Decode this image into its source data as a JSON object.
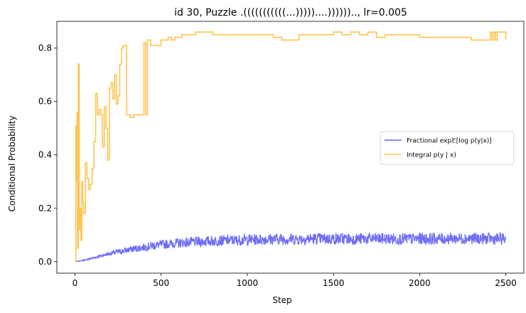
{
  "chart_data": {
    "type": "line",
    "title": "id 30, Puzzle .(((((((((((...)))))....)))))).., lr=0.005",
    "xlabel": "Step",
    "ylabel": "Conditional Probability",
    "xlim": [
      -105,
      2605
    ],
    "ylim": [
      -0.043,
      0.9
    ],
    "xticks": [
      0,
      500,
      1000,
      1500,
      2000,
      2500
    ],
    "xtick_labels": [
      "0",
      "500",
      "1000",
      "1500",
      "2000",
      "2500"
    ],
    "yticks": [
      0.0,
      0.2,
      0.4,
      0.6,
      0.8
    ],
    "ytick_labels": [
      "0.0",
      "0.2",
      "0.4",
      "0.6",
      "0.8"
    ],
    "grid": false,
    "legend_position": "center-right",
    "series": [
      {
        "name": "Fractional exp𝔼[log p(y|x)]",
        "legend_label": "Fractional exp𝔼[log p(y|x)]",
        "color": "#6666f5",
        "x": [
          0,
          50,
          100,
          150,
          200,
          250,
          300,
          350,
          400,
          450,
          500,
          600,
          700,
          800,
          900,
          1000,
          1100,
          1200,
          1300,
          1400,
          1500,
          1600,
          1700,
          1800,
          1900,
          2000,
          2100,
          2200,
          2300,
          2400,
          2500
        ],
        "values": [
          0.0,
          0.005,
          0.013,
          0.022,
          0.03,
          0.037,
          0.043,
          0.049,
          0.054,
          0.06,
          0.064,
          0.07,
          0.074,
          0.078,
          0.08,
          0.082,
          0.084,
          0.085,
          0.085,
          0.086,
          0.086,
          0.085,
          0.086,
          0.086,
          0.085,
          0.086,
          0.086,
          0.087,
          0.087,
          0.086,
          0.085
        ],
        "noise_amplitude": [
          0.0,
          0.002,
          0.004,
          0.006,
          0.008,
          0.01,
          0.012,
          0.013,
          0.015,
          0.016,
          0.017,
          0.018,
          0.019,
          0.02,
          0.02,
          0.021,
          0.021,
          0.022,
          0.022,
          0.022,
          0.022,
          0.022,
          0.022,
          0.022,
          0.022,
          0.022,
          0.022,
          0.022,
          0.022,
          0.022,
          0.022
        ]
      },
      {
        "name": "Integral p(y | x)",
        "legend_label": "Integral p(y | x)",
        "color": "#ffc451",
        "x": [
          0,
          5,
          8,
          12,
          15,
          20,
          25,
          30,
          35,
          40,
          45,
          50,
          60,
          70,
          80,
          90,
          100,
          110,
          120,
          130,
          140,
          150,
          160,
          170,
          180,
          190,
          200,
          210,
          220,
          230,
          240,
          250,
          260,
          270,
          280,
          300,
          320,
          340,
          360,
          380,
          400,
          410,
          420,
          430,
          440,
          450,
          460,
          480,
          500,
          520,
          540,
          560,
          580,
          600,
          620,
          650,
          700,
          750,
          800,
          900,
          1000,
          1050,
          1100,
          1150,
          1200,
          1300,
          1400,
          1450,
          1500,
          1550,
          1600,
          1650,
          1700,
          1750,
          1800,
          1900,
          2000,
          2050,
          2100,
          2200,
          2300,
          2400,
          2410,
          2420,
          2430,
          2440,
          2450,
          2460,
          2470,
          2480,
          2490,
          2500
        ],
        "values": [
          0.0,
          0.51,
          0.3,
          0.56,
          0.05,
          0.74,
          0.12,
          0.2,
          0.08,
          0.3,
          0.22,
          0.18,
          0.37,
          0.31,
          0.27,
          0.29,
          0.35,
          0.45,
          0.63,
          0.55,
          0.57,
          0.55,
          0.43,
          0.58,
          0.5,
          0.38,
          0.65,
          0.67,
          0.61,
          0.7,
          0.59,
          0.62,
          0.74,
          0.8,
          0.81,
          0.55,
          0.54,
          0.55,
          0.55,
          0.55,
          0.82,
          0.55,
          0.83,
          0.83,
          0.81,
          0.81,
          0.81,
          0.81,
          0.83,
          0.83,
          0.84,
          0.83,
          0.84,
          0.84,
          0.85,
          0.85,
          0.86,
          0.86,
          0.85,
          0.85,
          0.85,
          0.85,
          0.85,
          0.84,
          0.83,
          0.85,
          0.85,
          0.85,
          0.86,
          0.85,
          0.86,
          0.85,
          0.86,
          0.84,
          0.85,
          0.85,
          0.84,
          0.84,
          0.84,
          0.84,
          0.83,
          0.83,
          0.86,
          0.83,
          0.86,
          0.83,
          0.86,
          0.86,
          0.86,
          0.86,
          0.86,
          0.83
        ]
      }
    ]
  }
}
